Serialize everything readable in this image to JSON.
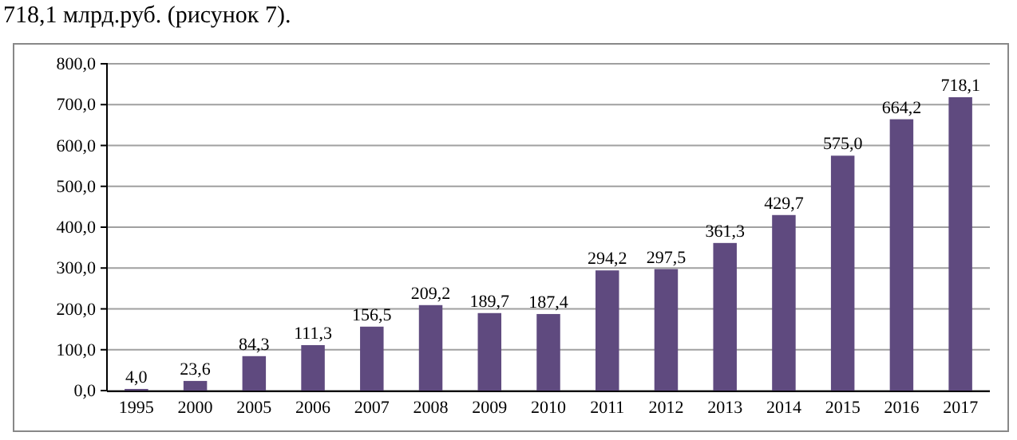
{
  "chart_data": {
    "type": "bar",
    "annotations": [
      "718,1 млрд.руб. (рисунок 7)."
    ],
    "categories": [
      "1995",
      "2000",
      "2005",
      "2006",
      "2007",
      "2008",
      "2009",
      "2010",
      "2011",
      "2012",
      "2013",
      "2014",
      "2015",
      "2016",
      "2017"
    ],
    "values": [
      4.0,
      23.6,
      84.3,
      111.3,
      156.5,
      209.2,
      189.7,
      187.4,
      294.2,
      297.5,
      361.3,
      429.7,
      575.0,
      664.2,
      718.1
    ],
    "value_labels": [
      "4,0",
      "23,6",
      "84,3",
      "111,3",
      "156,5",
      "209,2",
      "189,7",
      "187,4",
      "294,2",
      "297,5",
      "361,3",
      "429,7",
      "575,0",
      "664,2",
      "718,1"
    ],
    "color": "#5f4a7f",
    "ylim": [
      0,
      800
    ],
    "yticks": [
      {
        "value": 0,
        "label": "0,0"
      },
      {
        "value": 100,
        "label": "100,0"
      },
      {
        "value": 200,
        "label": "200,0"
      },
      {
        "value": 300,
        "label": "300,0"
      },
      {
        "value": 400,
        "label": "400,0"
      },
      {
        "value": 500,
        "label": "500,0"
      },
      {
        "value": 600,
        "label": "600,0"
      },
      {
        "value": 700,
        "label": "700,0"
      },
      {
        "value": 800,
        "label": "800,0"
      }
    ],
    "grid": "y"
  }
}
